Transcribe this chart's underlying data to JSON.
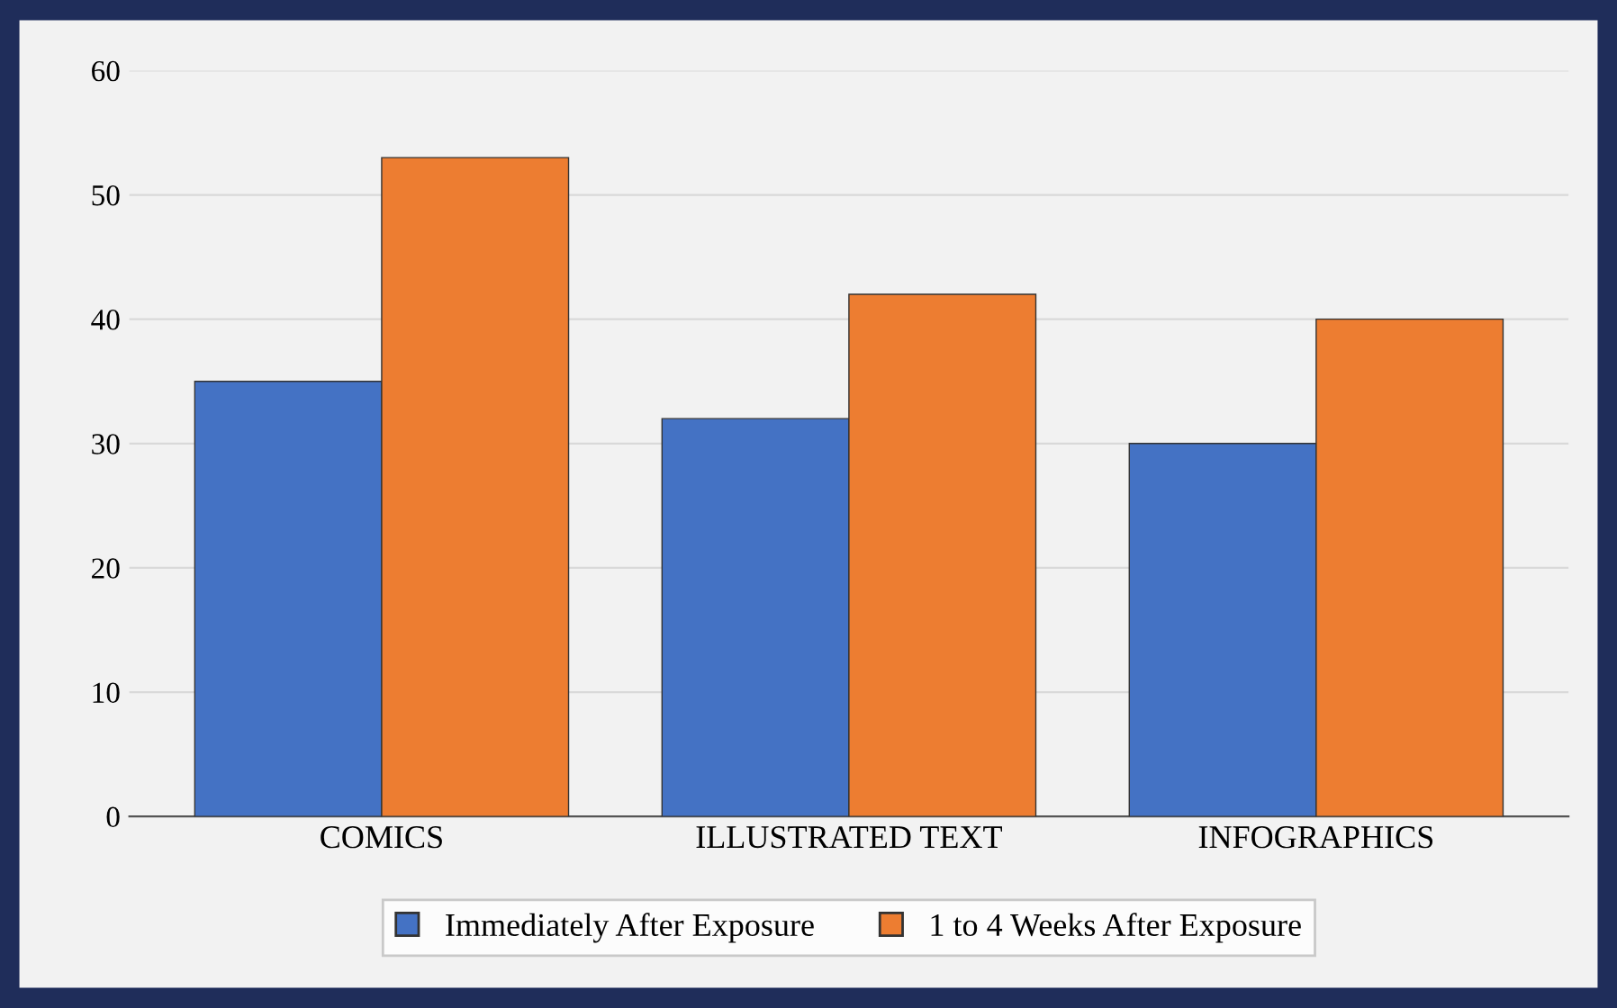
{
  "chart_data": {
    "type": "bar",
    "categories": [
      "COMICS",
      "ILLUSTRATED TEXT",
      "INFOGRAPHICS"
    ],
    "series": [
      {
        "name": "Immediately After Exposure",
        "color": "#4472c4",
        "values": [
          35,
          32,
          30
        ]
      },
      {
        "name": "1 to 4 Weeks After Exposure",
        "color": "#ed7d31",
        "values": [
          53,
          42,
          40
        ]
      }
    ],
    "ylim": [
      0,
      60
    ],
    "yticks": [
      0,
      10,
      20,
      30,
      40,
      50,
      60
    ],
    "grid": "y",
    "legend": "bottom"
  }
}
